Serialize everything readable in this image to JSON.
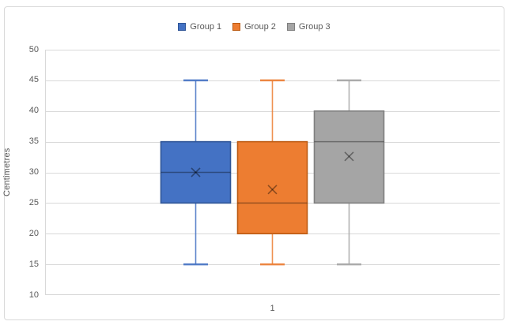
{
  "chart": {
    "background": "#FFFFFF",
    "border_color": "#D9D9D9",
    "gridline_color": "#D9D9D9",
    "axis_line_color": "#D9D9D9",
    "text_color": "#595959",
    "median_line_color": "rgba(0,0,0,0.35)",
    "mean_marker_color": "rgba(0,0,0,0.40)"
  },
  "chart_data": {
    "type": "boxplot",
    "title": "",
    "xlabel": "",
    "ylabel": "Centimetres",
    "categories": [
      "1"
    ],
    "ylim": [
      10,
      50
    ],
    "ytick_step": 5,
    "yticks": [
      10,
      15,
      20,
      25,
      30,
      35,
      40,
      45,
      50
    ],
    "grid": true,
    "legend_position": "top",
    "series": [
      {
        "name": "Group 1",
        "fill": "#4472C4",
        "line": "#2F5597",
        "min": 15,
        "q1": 25,
        "median": 30,
        "q3": 35,
        "max": 45,
        "mean": 30
      },
      {
        "name": "Group 2",
        "fill": "#ED7D31",
        "line": "#BC5A12",
        "min": 15,
        "q1": 20,
        "median": 25,
        "q3": 35,
        "max": 45,
        "mean": 27.2
      },
      {
        "name": "Group 3",
        "fill": "#A5A5A5",
        "line": "#7F7F7F",
        "min": 15,
        "q1": 25,
        "median": 35,
        "q3": 40,
        "max": 45,
        "mean": 32.6
      }
    ]
  }
}
